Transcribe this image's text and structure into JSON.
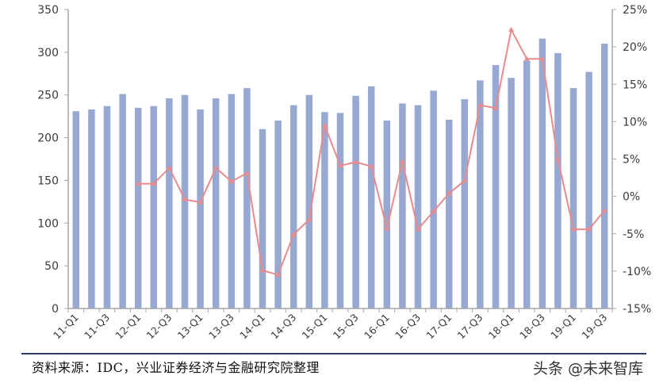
{
  "chart_data": {
    "type": "bar+line",
    "title": "",
    "categories": [
      "11-Q1",
      "11-Q2",
      "11-Q3",
      "11-Q4",
      "12-Q1",
      "12-Q2",
      "12-Q3",
      "12-Q4",
      "13-Q1",
      "13-Q2",
      "13-Q3",
      "13-Q4",
      "14-Q1",
      "14-Q2",
      "14-Q3",
      "14-Q4",
      "15-Q1",
      "15-Q2",
      "15-Q3",
      "15-Q4",
      "16-Q1",
      "16-Q2",
      "16-Q3",
      "16-Q4",
      "17-Q1",
      "17-Q2",
      "17-Q3",
      "17-Q4",
      "18-Q1",
      "18-Q2",
      "18-Q3",
      "18-Q4",
      "19-Q1",
      "19-Q2",
      "19-Q3"
    ],
    "xtick_labels_shown": [
      "11-Q1",
      "11-Q3",
      "12-Q1",
      "12-Q3",
      "13-Q1",
      "13-Q3",
      "14-Q1",
      "14-Q3",
      "15-Q1",
      "15-Q3",
      "16-Q1",
      "16-Q3",
      "17-Q1",
      "17-Q3",
      "18-Q1",
      "18-Q3",
      "19-Q1",
      "19-Q3"
    ],
    "series": [
      {
        "name": "bars",
        "type": "bar",
        "axis": "left",
        "color": "#97a8d3",
        "values": [
          231,
          233,
          237,
          251,
          235,
          237,
          246,
          250,
          233,
          246,
          251,
          258,
          210,
          220,
          238,
          250,
          230,
          229,
          249,
          260,
          220,
          240,
          238,
          255,
          221,
          245,
          267,
          285,
          270,
          290,
          316,
          299,
          258,
          277,
          310
        ]
      },
      {
        "name": "yoy",
        "type": "line",
        "axis": "right",
        "unit": "%",
        "color": "#ea8a8c",
        "marker": "triangle",
        "values": [
          null,
          null,
          null,
          null,
          1.7,
          1.7,
          3.8,
          -0.4,
          -0.8,
          3.8,
          2.0,
          3.1,
          -9.9,
          -10.5,
          -5.1,
          -3.1,
          9.5,
          4.1,
          4.6,
          4.0,
          -4.3,
          4.7,
          -4.4,
          -2.0,
          0.4,
          2.1,
          12.2,
          11.8,
          22.3,
          18.4,
          18.4,
          5.0,
          -4.4,
          -4.4,
          -1.9
        ]
      }
    ],
    "left_axis": {
      "ylim": [
        0,
        350
      ],
      "ticks": [
        0,
        50,
        100,
        150,
        200,
        250,
        300,
        350
      ]
    },
    "right_axis": {
      "ylim": [
        -15,
        25
      ],
      "ticks": [
        "-15%",
        "-10%",
        "-5%",
        "0%",
        "5%",
        "10%",
        "15%",
        "20%",
        "25%"
      ]
    },
    "xlabel": "",
    "ylabel": "",
    "grid": false,
    "legend": "none"
  },
  "footer": {
    "source": "资料来源：IDC，兴业证券经济与金融研究院整理",
    "watermark": "头条 @未来智库"
  }
}
